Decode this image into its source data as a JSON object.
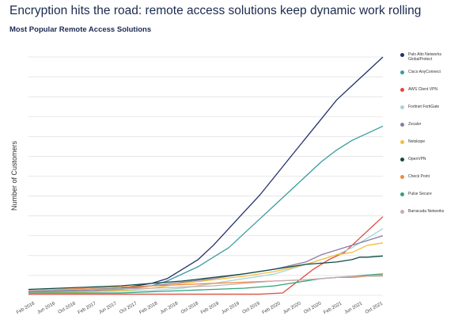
{
  "title": "Encryption hits the road: remote access solutions keep dynamic work rolling",
  "subtitle": "Most Popular Remote Access Solutions",
  "chart_data": {
    "type": "line",
    "ylabel": "Number of Customers",
    "x_ticks": [
      "Feb 2016",
      "Jun 2016",
      "Oct 2016",
      "Feb 2017",
      "Jun 2017",
      "Oct 2017",
      "Feb 2018",
      "Jun 2018",
      "Oct 2018",
      "Feb 2019",
      "Jun 2019",
      "Oct 2019",
      "Feb 2020",
      "Jun 2020",
      "Oct 2020",
      "Feb 2021",
      "Jun 2021",
      "Oct 2021"
    ],
    "ylim": [
      0,
      100
    ],
    "y_gridlines": 12,
    "legend_position": "right",
    "series": [
      {
        "name": "Palo Alto Networks GlobalProtect",
        "color": "#24306b",
        "points": [
          [
            0,
            2
          ],
          [
            2,
            2
          ],
          [
            4,
            2.5
          ],
          [
            6,
            3
          ],
          [
            8,
            5
          ],
          [
            9,
            7
          ],
          [
            10,
            11
          ],
          [
            11,
            15
          ],
          [
            12,
            21
          ],
          [
            13,
            28
          ],
          [
            14,
            35
          ],
          [
            15,
            42
          ],
          [
            16,
            50
          ],
          [
            17,
            58
          ],
          [
            18,
            66
          ],
          [
            19,
            74
          ],
          [
            20,
            82
          ],
          [
            21,
            88
          ],
          [
            22,
            94
          ],
          [
            23,
            100
          ]
        ]
      },
      {
        "name": "Cisco AnyConnect",
        "color": "#3a9ba0",
        "points": [
          [
            0,
            2
          ],
          [
            2,
            2
          ],
          [
            4,
            2.5
          ],
          [
            6,
            3
          ],
          [
            8,
            4
          ],
          [
            9,
            6
          ],
          [
            10,
            9
          ],
          [
            11,
            12
          ],
          [
            12,
            16
          ],
          [
            13,
            20
          ],
          [
            14,
            26
          ],
          [
            15,
            32
          ],
          [
            16,
            38
          ],
          [
            17,
            44
          ],
          [
            18,
            50
          ],
          [
            19,
            56
          ],
          [
            20,
            61
          ],
          [
            21,
            65
          ],
          [
            22,
            68
          ],
          [
            23,
            71
          ]
        ]
      },
      {
        "name": "AWS Client VPN",
        "color": "#e0483e",
        "points": [
          [
            0,
            0.5
          ],
          [
            5,
            0.5
          ],
          [
            10,
            0.5
          ],
          [
            15,
            0.5
          ],
          [
            16.5,
            1
          ],
          [
            17.5,
            6
          ],
          [
            18.5,
            11
          ],
          [
            19.5,
            15
          ],
          [
            20.5,
            18
          ],
          [
            21,
            21
          ],
          [
            22,
            27
          ],
          [
            23,
            33
          ]
        ]
      },
      {
        "name": "Fortinet FortiGate",
        "color": "#a9d3d4",
        "points": [
          [
            0,
            1.5
          ],
          [
            4,
            1.5
          ],
          [
            8,
            2
          ],
          [
            10,
            3
          ],
          [
            12,
            5
          ],
          [
            14,
            7
          ],
          [
            16,
            9
          ],
          [
            17,
            11
          ],
          [
            18,
            13
          ],
          [
            19,
            15
          ],
          [
            20,
            17
          ],
          [
            21,
            20
          ],
          [
            22,
            24
          ],
          [
            23,
            28
          ]
        ]
      },
      {
        "name": "Zscaler",
        "color": "#8b7aa3",
        "points": [
          [
            0,
            1.5
          ],
          [
            4,
            2
          ],
          [
            6,
            2.5
          ],
          [
            8,
            4
          ],
          [
            10,
            5.5
          ],
          [
            12,
            7
          ],
          [
            14,
            9
          ],
          [
            16,
            11
          ],
          [
            18,
            14
          ],
          [
            19,
            17
          ],
          [
            20,
            19
          ],
          [
            21,
            21
          ],
          [
            22,
            23
          ],
          [
            23,
            25
          ]
        ]
      },
      {
        "name": "Netskope",
        "color": "#f3bf3b",
        "points": [
          [
            0,
            1
          ],
          [
            4,
            1.5
          ],
          [
            6,
            2
          ],
          [
            8,
            3
          ],
          [
            10,
            5
          ],
          [
            12,
            6.5
          ],
          [
            14,
            8
          ],
          [
            16,
            10
          ],
          [
            18,
            13
          ],
          [
            19,
            15
          ],
          [
            20,
            17
          ],
          [
            21,
            18
          ],
          [
            22,
            21
          ],
          [
            23,
            22
          ]
        ]
      },
      {
        "name": "OpenVPN",
        "color": "#0f4a46",
        "points": [
          [
            0,
            2.5
          ],
          [
            2,
            3
          ],
          [
            4,
            3.5
          ],
          [
            6,
            4
          ],
          [
            8,
            5
          ],
          [
            10,
            6
          ],
          [
            12,
            7.5
          ],
          [
            14,
            9
          ],
          [
            15,
            10
          ],
          [
            16,
            11
          ],
          [
            17,
            12
          ],
          [
            18,
            13
          ],
          [
            19,
            13.5
          ],
          [
            20,
            14
          ],
          [
            21,
            15
          ],
          [
            21.5,
            16
          ],
          [
            22,
            16
          ],
          [
            23,
            16.5
          ]
        ]
      },
      {
        "name": "Check Point",
        "color": "#ef8a3a",
        "points": [
          [
            0,
            2
          ],
          [
            2,
            2.5
          ],
          [
            4,
            3
          ],
          [
            6,
            3.5
          ],
          [
            8,
            4
          ],
          [
            10,
            4.5
          ],
          [
            12,
            5
          ],
          [
            14,
            5.5
          ],
          [
            16,
            6
          ],
          [
            18,
            6.5
          ],
          [
            20,
            7.5
          ],
          [
            21,
            7.5
          ],
          [
            22,
            8
          ],
          [
            23,
            8.5
          ]
        ]
      },
      {
        "name": "Pulse Secure",
        "color": "#2fa47a",
        "points": [
          [
            0,
            1
          ],
          [
            2,
            1
          ],
          [
            4,
            1
          ],
          [
            6,
            1
          ],
          [
            8,
            1.5
          ],
          [
            10,
            2
          ],
          [
            12,
            2.5
          ],
          [
            14,
            3
          ],
          [
            16,
            4
          ],
          [
            17,
            5
          ],
          [
            18,
            6
          ],
          [
            19,
            7
          ],
          [
            20,
            7.5
          ],
          [
            21,
            8
          ],
          [
            22,
            8.5
          ],
          [
            23,
            9
          ]
        ]
      },
      {
        "name": "Barracuda Networks",
        "color": "#c4aeb4",
        "points": [
          [
            0,
            2
          ],
          [
            4,
            2.5
          ],
          [
            8,
            3
          ],
          [
            10,
            3.5
          ],
          [
            12,
            4
          ],
          [
            14,
            5
          ],
          [
            16,
            6
          ],
          [
            18,
            6.5
          ],
          [
            19,
            7
          ],
          [
            20,
            7.5
          ],
          [
            21,
            8
          ],
          [
            22,
            8
          ],
          [
            23,
            8
          ]
        ]
      }
    ]
  }
}
